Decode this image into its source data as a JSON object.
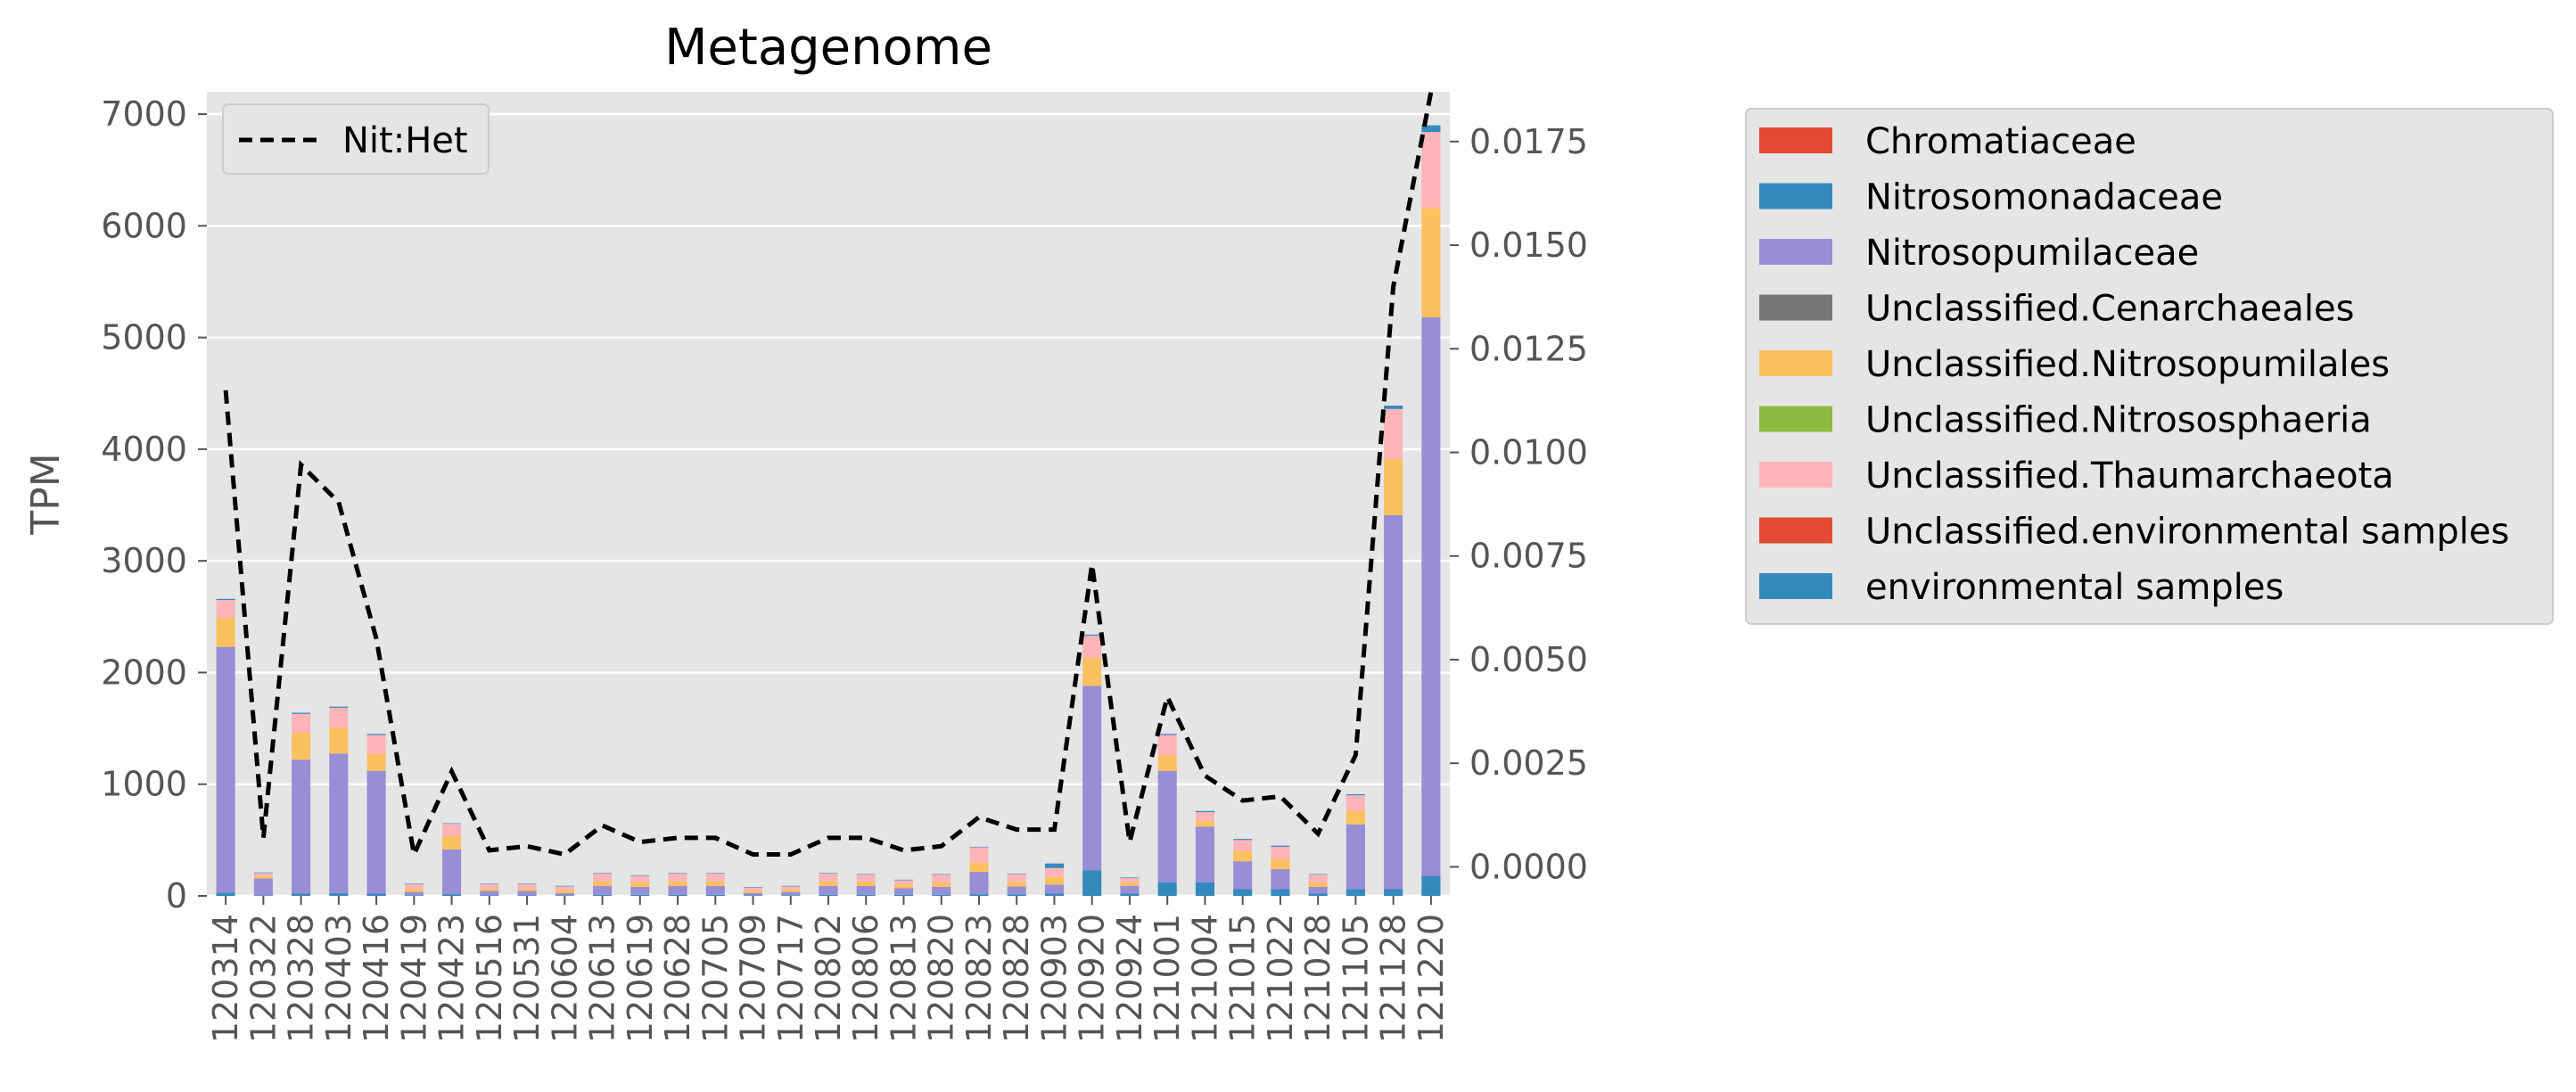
{
  "chart_data": {
    "type": "bar",
    "title": "Metagenome",
    "ylabel": "TPM",
    "ylim": [
      0,
      7200
    ],
    "y_ticks": [
      0,
      1000,
      2000,
      3000,
      4000,
      5000,
      6000,
      7000
    ],
    "y2lim": [
      -0.0007,
      0.0187
    ],
    "y2_ticks": [
      "0.0000",
      "0.0025",
      "0.0050",
      "0.0075",
      "0.0100",
      "0.0125",
      "0.0150",
      "0.0175"
    ],
    "grid": true,
    "legend_placement": "outside-right",
    "categories": [
      "120314",
      "120322",
      "120328",
      "120403",
      "120416",
      "120419",
      "120423",
      "120516",
      "120531",
      "120604",
      "120613",
      "120619",
      "120628",
      "120705",
      "120709",
      "120717",
      "120802",
      "120806",
      "120813",
      "120820",
      "120823",
      "120828",
      "120903",
      "120920",
      "120924",
      "121001",
      "121004",
      "121015",
      "121022",
      "121028",
      "121105",
      "121128",
      "121220"
    ],
    "series": [
      {
        "name": "Chromatiaceae",
        "color": "#E24A33",
        "values": [
          0,
          0,
          0,
          0,
          0,
          0,
          0,
          0,
          0,
          0,
          0,
          0,
          0,
          0,
          0,
          0,
          0,
          0,
          0,
          0,
          0,
          0,
          0,
          0,
          0,
          0,
          0,
          0,
          0,
          0,
          0,
          0,
          0
        ]
      },
      {
        "name": "Nitrosomonadaceae",
        "color": "#348ABD",
        "values": [
          30,
          5,
          20,
          25,
          20,
          5,
          15,
          5,
          5,
          5,
          10,
          10,
          10,
          10,
          5,
          5,
          10,
          10,
          10,
          10,
          15,
          15,
          20,
          230,
          20,
          120,
          120,
          60,
          60,
          20,
          60,
          60,
          180
        ]
      },
      {
        "name": "Nitrosopumilaceae",
        "color": "#988ED5",
        "values": [
          2200,
          150,
          1200,
          1250,
          1100,
          30,
          400,
          40,
          40,
          20,
          80,
          70,
          80,
          80,
          20,
          30,
          80,
          80,
          60,
          70,
          200,
          70,
          80,
          1650,
          70,
          1000,
          500,
          250,
          180,
          60,
          580,
          3350,
          5000
        ]
      },
      {
        "name": "Unclassified.Cenarchaeales",
        "color": "#777777",
        "values": [
          0,
          0,
          0,
          0,
          0,
          0,
          0,
          0,
          0,
          0,
          0,
          0,
          0,
          0,
          0,
          0,
          0,
          0,
          0,
          0,
          0,
          0,
          0,
          0,
          0,
          0,
          0,
          0,
          0,
          0,
          0,
          0,
          0
        ]
      },
      {
        "name": "Unclassified.Nitrosopumilales",
        "color": "#FBC15E",
        "values": [
          260,
          20,
          240,
          230,
          150,
          30,
          120,
          20,
          20,
          30,
          40,
          40,
          40,
          40,
          20,
          20,
          40,
          40,
          30,
          40,
          80,
          40,
          70,
          250,
          30,
          140,
          50,
          90,
          90,
          40,
          120,
          500,
          980
        ]
      },
      {
        "name": "Unclassified.Nitrososphaeria",
        "color": "#8EBA42",
        "values": [
          0,
          0,
          0,
          0,
          0,
          0,
          0,
          0,
          0,
          0,
          0,
          0,
          0,
          0,
          0,
          0,
          0,
          0,
          0,
          0,
          0,
          0,
          0,
          0,
          0,
          0,
          0,
          0,
          0,
          0,
          0,
          0,
          0
        ]
      },
      {
        "name": "Unclassified.Thaumarchaeota",
        "color": "#FFB5B8",
        "values": [
          160,
          30,
          170,
          180,
          170,
          40,
          110,
          40,
          40,
          30,
          70,
          60,
          70,
          70,
          30,
          30,
          70,
          60,
          40,
          70,
          140,
          70,
          80,
          200,
          40,
          180,
          80,
          100,
          110,
          70,
          140,
          450,
          680
        ]
      },
      {
        "name": "Unclassified.environmental samples",
        "color": "#E24A33",
        "values": [
          0,
          0,
          0,
          0,
          0,
          0,
          0,
          0,
          0,
          0,
          0,
          0,
          0,
          0,
          0,
          0,
          0,
          0,
          0,
          0,
          0,
          0,
          0,
          0,
          0,
          0,
          0,
          0,
          0,
          0,
          0,
          0,
          0
        ]
      },
      {
        "name": "environmental samples",
        "color": "#348ABD",
        "values": [
          10,
          5,
          10,
          10,
          10,
          5,
          5,
          5,
          5,
          5,
          5,
          5,
          5,
          5,
          5,
          5,
          5,
          5,
          5,
          5,
          5,
          5,
          40,
          10,
          5,
          10,
          10,
          10,
          10,
          5,
          10,
          30,
          60
        ]
      }
    ],
    "line_series": {
      "name": "Nit:Het",
      "axis": "right",
      "color": "#000000",
      "style": "dashed",
      "values": [
        0.0115,
        0.0007,
        0.0097,
        0.0088,
        0.0055,
        0.0003,
        0.0023,
        0.0004,
        0.0005,
        0.0003,
        0.001,
        0.0006,
        0.0007,
        0.0007,
        0.0003,
        0.0003,
        0.0007,
        0.0007,
        0.0004,
        0.0005,
        0.0012,
        0.0009,
        0.0009,
        0.0073,
        0.0006,
        0.0041,
        0.0022,
        0.0016,
        0.0017,
        0.0008,
        0.0027,
        0.014,
        0.0187
      ]
    }
  }
}
